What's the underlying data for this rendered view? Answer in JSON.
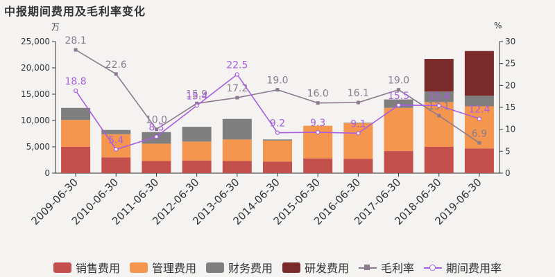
{
  "title": "中报期间费用及毛利率变化",
  "units": {
    "left": "万",
    "right": "%"
  },
  "chart_data": {
    "type": "bar",
    "stacked": true,
    "categories": [
      "2009-06-30",
      "2010-06-30",
      "2011-06-30",
      "2012-06-30",
      "2013-06-30",
      "2014-06-30",
      "2015-06-30",
      "2016-06-30",
      "2017-06-30",
      "2018-06-30",
      "2019-06-30"
    ],
    "ylim": [
      0,
      25000
    ],
    "yticks": [
      0,
      5000,
      10000,
      15000,
      20000,
      25000
    ],
    "ytick_labels": [
      "0",
      "5,000",
      "10,000",
      "15,000",
      "20,000",
      "25,000"
    ],
    "y2lim": [
      0,
      30
    ],
    "y2ticks": [
      0,
      5,
      10,
      15,
      20,
      25,
      30
    ],
    "series": [
      {
        "name": "销售费用",
        "color": "#c4504d",
        "values": [
          5000,
          3000,
          2300,
          2400,
          2300,
          2200,
          2800,
          2700,
          4200,
          5000,
          4700
        ]
      },
      {
        "name": "管理费用",
        "color": "#f5964f",
        "values": [
          5100,
          4400,
          3300,
          3600,
          4100,
          4000,
          6200,
          6800,
          8200,
          8500,
          8000
        ]
      },
      {
        "name": "财务费用",
        "color": "#7f7f7f",
        "values": [
          2300,
          800,
          2200,
          2800,
          3900,
          200,
          0,
          100,
          1600,
          2000,
          2000
        ]
      },
      {
        "name": "研发费用",
        "color": "#7b2a2a",
        "values": [
          0,
          0,
          0,
          0,
          0,
          0,
          0,
          0,
          0,
          6200,
          8500
        ]
      }
    ],
    "lines": [
      {
        "name": "毛利率",
        "color": "#8c7b8e",
        "marker": "square",
        "values": [
          28.1,
          22.6,
          10.0,
          15.9,
          17.2,
          19.0,
          16.0,
          16.1,
          19.0,
          13.1,
          6.9
        ],
        "labels": [
          "28.1",
          "22.6",
          "10.0",
          "15.9",
          "17.2",
          "19.0",
          "16.0",
          "16.1",
          "19.0",
          "13.1",
          "6.9"
        ]
      },
      {
        "name": "期间费用率",
        "color": "#a95ee0",
        "marker": "circle",
        "values": [
          18.8,
          5.4,
          8.3,
          15.4,
          22.5,
          9.2,
          9.3,
          9.1,
          15.5,
          15.4,
          12.4
        ],
        "labels": [
          "18.8",
          "5.4",
          "8.3",
          "15.4",
          "22.5",
          "9.2",
          "9.3",
          "9.1",
          "15.5",
          "15.4",
          "12.4"
        ]
      }
    ]
  }
}
